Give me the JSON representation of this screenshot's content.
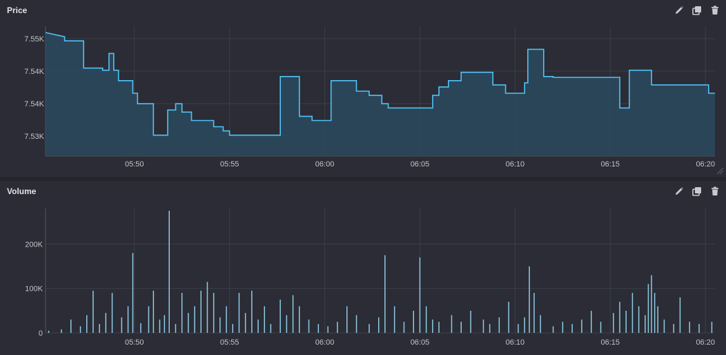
{
  "panels": [
    {
      "title": "Price"
    },
    {
      "title": "Volume"
    }
  ],
  "icons": {
    "edit": "pencil-icon",
    "duplicate": "copy-icon",
    "delete": "trash-icon"
  },
  "colors": {
    "line": "#4fc3f7",
    "area": "#2c4a5e",
    "bar": "#8ecbe6",
    "grid": "#3c3e48",
    "background": "#2b2c35"
  },
  "chart_data": [
    {
      "type": "area",
      "title": "Price",
      "x_ticks": [
        "05:50",
        "05:55",
        "06:00",
        "06:05",
        "06:10",
        "06:15",
        "06:20"
      ],
      "y_ticks": [
        "7.55K",
        "7.54K",
        "7.54K",
        "7.53K"
      ],
      "ylim": [
        7522,
        7553
      ],
      "x_range": [
        "05:45:20",
        "06:20:30"
      ],
      "grid": true,
      "series": [
        {
          "points": [
            [
              "05:45:20",
              7551.5
            ],
            [
              "05:46:20",
              7550.5
            ],
            [
              "05:46:20",
              7549.5
            ],
            [
              "05:47:20",
              7549.5
            ],
            [
              "05:47:20",
              7543
            ],
            [
              "05:48:20",
              7543
            ],
            [
              "05:48:20",
              7542.5
            ],
            [
              "05:48:40",
              7542.5
            ],
            [
              "05:48:40",
              7546.5
            ],
            [
              "05:48:55",
              7546.5
            ],
            [
              "05:48:55",
              7542.5
            ],
            [
              "05:49:10",
              7542.5
            ],
            [
              "05:49:10",
              7540
            ],
            [
              "05:49:55",
              7540
            ],
            [
              "05:49:55",
              7537
            ],
            [
              "05:50:10",
              7537
            ],
            [
              "05:50:10",
              7534.5
            ],
            [
              "05:51:00",
              7534.5
            ],
            [
              "05:51:00",
              7527
            ],
            [
              "05:51:45",
              7527
            ],
            [
              "05:51:45",
              7533
            ],
            [
              "05:52:10",
              7533
            ],
            [
              "05:52:10",
              7534.5
            ],
            [
              "05:52:30",
              7534.5
            ],
            [
              "05:52:30",
              7532.5
            ],
            [
              "05:53:00",
              7532.5
            ],
            [
              "05:53:00",
              7530.5
            ],
            [
              "05:54:10",
              7530.5
            ],
            [
              "05:54:10",
              7529
            ],
            [
              "05:54:40",
              7529
            ],
            [
              "05:54:40",
              7528
            ],
            [
              "05:55:00",
              7528
            ],
            [
              "05:55:00",
              7527
            ],
            [
              "05:57:40",
              7527
            ],
            [
              "05:57:40",
              7541
            ],
            [
              "05:58:40",
              7541
            ],
            [
              "05:58:40",
              7531.5
            ],
            [
              "05:59:20",
              7531.5
            ],
            [
              "05:59:20",
              7530.5
            ],
            [
              "06:00:20",
              7530.5
            ],
            [
              "06:00:20",
              7540
            ],
            [
              "06:01:40",
              7540
            ],
            [
              "06:01:40",
              7537.5
            ],
            [
              "06:02:20",
              7537.5
            ],
            [
              "06:02:20",
              7536.5
            ],
            [
              "06:03:00",
              7536.5
            ],
            [
              "06:03:00",
              7534.5
            ],
            [
              "06:03:20",
              7534.5
            ],
            [
              "06:03:20",
              7533.5
            ],
            [
              "06:05:40",
              7533.5
            ],
            [
              "06:05:40",
              7536.5
            ],
            [
              "06:06:00",
              7536.5
            ],
            [
              "06:06:00",
              7538.5
            ],
            [
              "06:06:30",
              7538.5
            ],
            [
              "06:06:30",
              7540
            ],
            [
              "06:07:10",
              7540
            ],
            [
              "06:07:10",
              7542
            ],
            [
              "06:08:50",
              7542
            ],
            [
              "06:08:50",
              7539
            ],
            [
              "06:09:30",
              7539
            ],
            [
              "06:09:30",
              7537
            ],
            [
              "06:10:30",
              7537
            ],
            [
              "06:10:30",
              7539.5
            ],
            [
              "06:10:40",
              7539.5
            ],
            [
              "06:10:40",
              7547.5
            ],
            [
              "06:11:30",
              7547.5
            ],
            [
              "06:11:30",
              7541
            ],
            [
              "06:12:00",
              7541
            ],
            [
              "06:12:00",
              7540.8
            ],
            [
              "06:15:30",
              7540.8
            ],
            [
              "06:15:30",
              7533.5
            ],
            [
              "06:16:00",
              7533.5
            ],
            [
              "06:16:00",
              7542.5
            ],
            [
              "06:17:10",
              7542.5
            ],
            [
              "06:17:10",
              7539
            ],
            [
              "06:20:10",
              7539
            ],
            [
              "06:20:10",
              7537
            ],
            [
              "06:20:30",
              7537
            ]
          ]
        }
      ]
    },
    {
      "type": "bar",
      "title": "Volume",
      "x_ticks": [
        "05:50",
        "05:55",
        "06:00",
        "06:05",
        "06:10",
        "06:15",
        "06:20"
      ],
      "y_ticks": [
        "0",
        "100K",
        "200K"
      ],
      "ylim": [
        0,
        280000
      ],
      "x_range": [
        "05:45:20",
        "06:20:30"
      ],
      "grid": true,
      "series": [
        {
          "bars": [
            [
              "05:45:30",
              5000
            ],
            [
              "05:46:10",
              8000
            ],
            [
              "05:46:40",
              30000
            ],
            [
              "05:47:10",
              15000
            ],
            [
              "05:47:30",
              40000
            ],
            [
              "05:47:50",
              95000
            ],
            [
              "05:48:10",
              20000
            ],
            [
              "05:48:30",
              45000
            ],
            [
              "05:48:50",
              90000
            ],
            [
              "05:49:20",
              35000
            ],
            [
              "05:49:40",
              60000
            ],
            [
              "05:49:55",
              180000
            ],
            [
              "05:50:20",
              22000
            ],
            [
              "05:50:45",
              60000
            ],
            [
              "05:51:00",
              95000
            ],
            [
              "05:51:20",
              30000
            ],
            [
              "05:51:35",
              40000
            ],
            [
              "05:51:50",
              275000
            ],
            [
              "05:52:10",
              20000
            ],
            [
              "05:52:30",
              90000
            ],
            [
              "05:52:50",
              45000
            ],
            [
              "05:53:10",
              60000
            ],
            [
              "05:53:30",
              95000
            ],
            [
              "05:53:50",
              115000
            ],
            [
              "05:54:10",
              90000
            ],
            [
              "05:54:30",
              35000
            ],
            [
              "05:54:50",
              60000
            ],
            [
              "05:55:10",
              20000
            ],
            [
              "05:55:30",
              90000
            ],
            [
              "05:55:50",
              45000
            ],
            [
              "05:56:10",
              95000
            ],
            [
              "05:56:30",
              30000
            ],
            [
              "05:56:50",
              60000
            ],
            [
              "05:57:10",
              20000
            ],
            [
              "05:57:40",
              75000
            ],
            [
              "05:58:00",
              40000
            ],
            [
              "05:58:20",
              85000
            ],
            [
              "05:58:40",
              60000
            ],
            [
              "05:59:10",
              30000
            ],
            [
              "05:59:40",
              20000
            ],
            [
              "06:00:10",
              15000
            ],
            [
              "06:00:40",
              25000
            ],
            [
              "06:01:10",
              60000
            ],
            [
              "06:01:40",
              40000
            ],
            [
              "06:02:20",
              20000
            ],
            [
              "06:02:50",
              35000
            ],
            [
              "06:03:10",
              175000
            ],
            [
              "06:03:40",
              60000
            ],
            [
              "06:04:10",
              25000
            ],
            [
              "06:04:40",
              50000
            ],
            [
              "06:05:00",
              170000
            ],
            [
              "06:05:20",
              60000
            ],
            [
              "06:05:40",
              30000
            ],
            [
              "06:06:00",
              25000
            ],
            [
              "06:06:40",
              40000
            ],
            [
              "06:07:10",
              25000
            ],
            [
              "06:07:40",
              50000
            ],
            [
              "06:08:20",
              30000
            ],
            [
              "06:08:40",
              20000
            ],
            [
              "06:09:10",
              35000
            ],
            [
              "06:09:40",
              70000
            ],
            [
              "06:10:10",
              20000
            ],
            [
              "06:10:30",
              35000
            ],
            [
              "06:10:45",
              150000
            ],
            [
              "06:11:00",
              90000
            ],
            [
              "06:11:20",
              40000
            ],
            [
              "06:12:00",
              15000
            ],
            [
              "06:12:30",
              25000
            ],
            [
              "06:13:00",
              20000
            ],
            [
              "06:13:30",
              30000
            ],
            [
              "06:14:00",
              50000
            ],
            [
              "06:14:30",
              25000
            ],
            [
              "06:15:10",
              45000
            ],
            [
              "06:15:30",
              70000
            ],
            [
              "06:15:50",
              50000
            ],
            [
              "06:16:10",
              90000
            ],
            [
              "06:16:30",
              60000
            ],
            [
              "06:16:50",
              40000
            ],
            [
              "06:17:00",
              110000
            ],
            [
              "06:17:10",
              130000
            ],
            [
              "06:17:20",
              90000
            ],
            [
              "06:17:30",
              60000
            ],
            [
              "06:17:50",
              30000
            ],
            [
              "06:18:20",
              20000
            ],
            [
              "06:18:40",
              80000
            ],
            [
              "06:19:10",
              25000
            ],
            [
              "06:19:40",
              20000
            ],
            [
              "06:20:20",
              25000
            ]
          ]
        }
      ]
    }
  ]
}
